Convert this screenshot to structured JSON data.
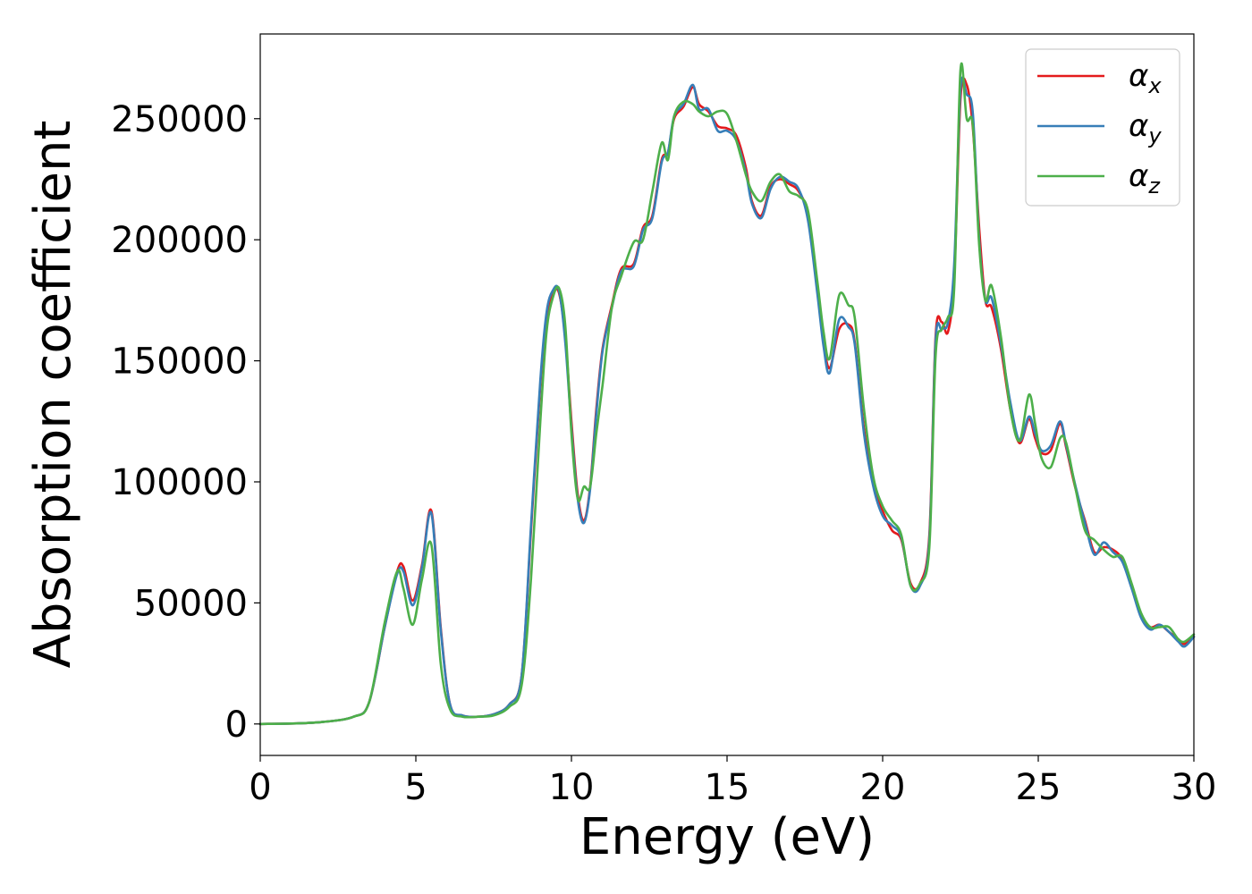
{
  "chart_data": {
    "type": "line",
    "title": "",
    "xlabel": "Energy (eV)",
    "ylabel": "Absorption coefficient",
    "xlim": [
      0,
      30
    ],
    "ylim": [
      -13000,
      285000
    ],
    "x_ticks": [
      0,
      5,
      10,
      15,
      20,
      25,
      30
    ],
    "y_ticks": [
      0,
      50000,
      100000,
      150000,
      200000,
      250000
    ],
    "grid": false,
    "legend_position": "top-right",
    "x": [
      0,
      1,
      2,
      3,
      3.5,
      4.0,
      4.4,
      4.6,
      4.9,
      5.2,
      5.5,
      5.8,
      6.1,
      6.5,
      7.0,
      7.5,
      8.0,
      8.4,
      8.7,
      9.0,
      9.2,
      9.4,
      9.6,
      9.8,
      10.0,
      10.2,
      10.4,
      10.6,
      10.8,
      11.0,
      11.3,
      11.6,
      12.0,
      12.3,
      12.6,
      12.9,
      13.1,
      13.3,
      13.6,
      13.9,
      14.1,
      14.4,
      14.7,
      15.0,
      15.3,
      15.6,
      15.8,
      16.1,
      16.4,
      16.7,
      17.0,
      17.3,
      17.6,
      17.9,
      18.1,
      18.3,
      18.6,
      18.9,
      19.1,
      19.4,
      19.7,
      20.0,
      20.3,
      20.6,
      20.9,
      21.2,
      21.5,
      21.7,
      21.9,
      22.1,
      22.3,
      22.5,
      22.7,
      22.9,
      23.1,
      23.3,
      23.5,
      23.8,
      24.1,
      24.4,
      24.7,
      24.9,
      25.1,
      25.4,
      25.7,
      25.9,
      26.2,
      26.5,
      26.8,
      27.1,
      27.4,
      27.7,
      28.0,
      28.3,
      28.6,
      28.9,
      29.2,
      29.5,
      29.7,
      30.0
    ],
    "series": [
      {
        "name": "αx",
        "label_base": "α",
        "label_sub": "x",
        "color": "#e41a1c",
        "values": [
          0,
          200,
          800,
          3000,
          9000,
          40000,
          63000,
          65000,
          51000,
          66000,
          88000,
          40000,
          8000,
          3500,
          3000,
          4000,
          8000,
          20000,
          80000,
          140000,
          168000,
          178000,
          178000,
          160000,
          125000,
          95000,
          84000,
          98000,
          130000,
          155000,
          173000,
          188000,
          190000,
          205000,
          210000,
          233000,
          236000,
          250000,
          255000,
          263000,
          256000,
          253000,
          247000,
          246000,
          243000,
          230000,
          216000,
          210000,
          222000,
          225000,
          223000,
          220000,
          210000,
          180000,
          158000,
          147000,
          163000,
          165000,
          158000,
          122000,
          100000,
          88000,
          80000,
          76000,
          58000,
          58000,
          78000,
          160000,
          166000,
          162000,
          185000,
          258000,
          264000,
          246000,
          205000,
          175000,
          172000,
          155000,
          130000,
          116000,
          126000,
          118000,
          112000,
          113000,
          124000,
          114000,
          97000,
          84000,
          71000,
          73000,
          72000,
          68000,
          57000,
          45000,
          40000,
          41000,
          38000,
          35000,
          33000,
          36000
        ]
      },
      {
        "name": "αy",
        "label_base": "α",
        "label_sub": "y",
        "color": "#377eb8",
        "values": [
          0,
          200,
          800,
          3000,
          9000,
          40000,
          62000,
          63000,
          49000,
          65000,
          87000,
          39000,
          8000,
          3500,
          3000,
          4000,
          8000,
          20000,
          82000,
          142000,
          170000,
          179000,
          179000,
          158000,
          122000,
          93000,
          83000,
          97000,
          128000,
          154000,
          172000,
          187000,
          189000,
          204000,
          209000,
          232000,
          236000,
          251000,
          256000,
          264000,
          254000,
          254000,
          245000,
          245000,
          241000,
          228000,
          215000,
          209000,
          221000,
          226000,
          224000,
          221000,
          208000,
          178000,
          156000,
          145000,
          167000,
          164000,
          157000,
          120000,
          98000,
          86000,
          82000,
          77000,
          57000,
          57000,
          76000,
          158000,
          163000,
          166000,
          190000,
          262000,
          260000,
          252000,
          200000,
          175000,
          176000,
          157000,
          133000,
          117000,
          127000,
          120000,
          113000,
          115000,
          125000,
          115000,
          98000,
          83000,
          70000,
          75000,
          71000,
          67000,
          56000,
          44000,
          39000,
          41000,
          38000,
          34000,
          32000,
          36000
        ]
      },
      {
        "name": "αz",
        "label_base": "α",
        "label_sub": "z",
        "color": "#4daf4a",
        "values": [
          0,
          200,
          800,
          3000,
          9000,
          42000,
          63000,
          56000,
          41000,
          60000,
          74000,
          25000,
          6000,
          3000,
          3000,
          3500,
          7000,
          16000,
          60000,
          125000,
          162000,
          176000,
          180000,
          165000,
          120000,
          93000,
          98000,
          98000,
          120000,
          140000,
          172000,
          185000,
          199000,
          200000,
          220000,
          240000,
          233000,
          251000,
          257000,
          256000,
          253000,
          251000,
          253000,
          252000,
          241000,
          227000,
          220000,
          216000,
          224000,
          227000,
          220000,
          218000,
          212000,
          183000,
          162000,
          151000,
          177000,
          173000,
          168000,
          130000,
          102000,
          90000,
          84000,
          78000,
          57000,
          58000,
          73000,
          152000,
          163000,
          168000,
          180000,
          270000,
          250000,
          247000,
          198000,
          175000,
          181000,
          160000,
          130000,
          117000,
          136000,
          124000,
          110000,
          106000,
          118000,
          116000,
          97000,
          80000,
          76000,
          72000,
          69000,
          69000,
          58000,
          46000,
          40000,
          40000,
          40000,
          35000,
          34000,
          37000
        ]
      }
    ]
  }
}
